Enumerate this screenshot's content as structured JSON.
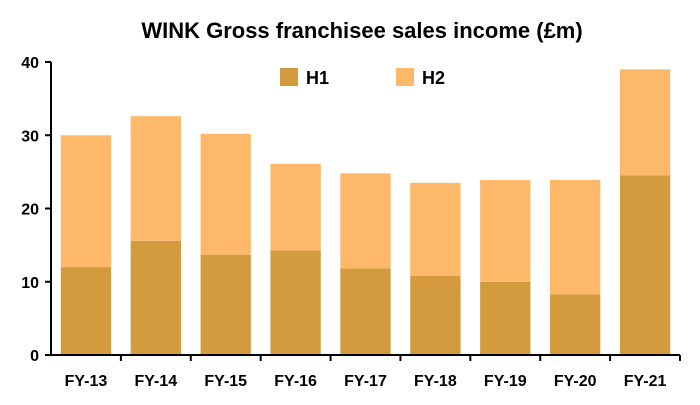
{
  "chart_data": {
    "type": "bar",
    "stacked": true,
    "title": "WINK Gross franchisee sales income (£m)",
    "xlabel": "",
    "ylabel": "",
    "categories": [
      "FY-13",
      "FY-14",
      "FY-15",
      "FY-16",
      "FY-17",
      "FY-18",
      "FY-19",
      "FY-20",
      "FY-21"
    ],
    "series": [
      {
        "name": "H1",
        "color": "#d49b3e",
        "values": [
          12.0,
          15.6,
          13.7,
          14.3,
          11.8,
          10.8,
          10.0,
          8.3,
          24.5
        ]
      },
      {
        "name": "H2",
        "color": "#fdb86a",
        "values": [
          18.0,
          17.0,
          16.5,
          11.8,
          13.0,
          12.7,
          13.9,
          15.6,
          14.5
        ]
      }
    ],
    "ylim": [
      0,
      40
    ],
    "yticks": [
      0,
      10,
      20,
      30,
      40
    ],
    "grid": false,
    "legend_position": "top"
  }
}
